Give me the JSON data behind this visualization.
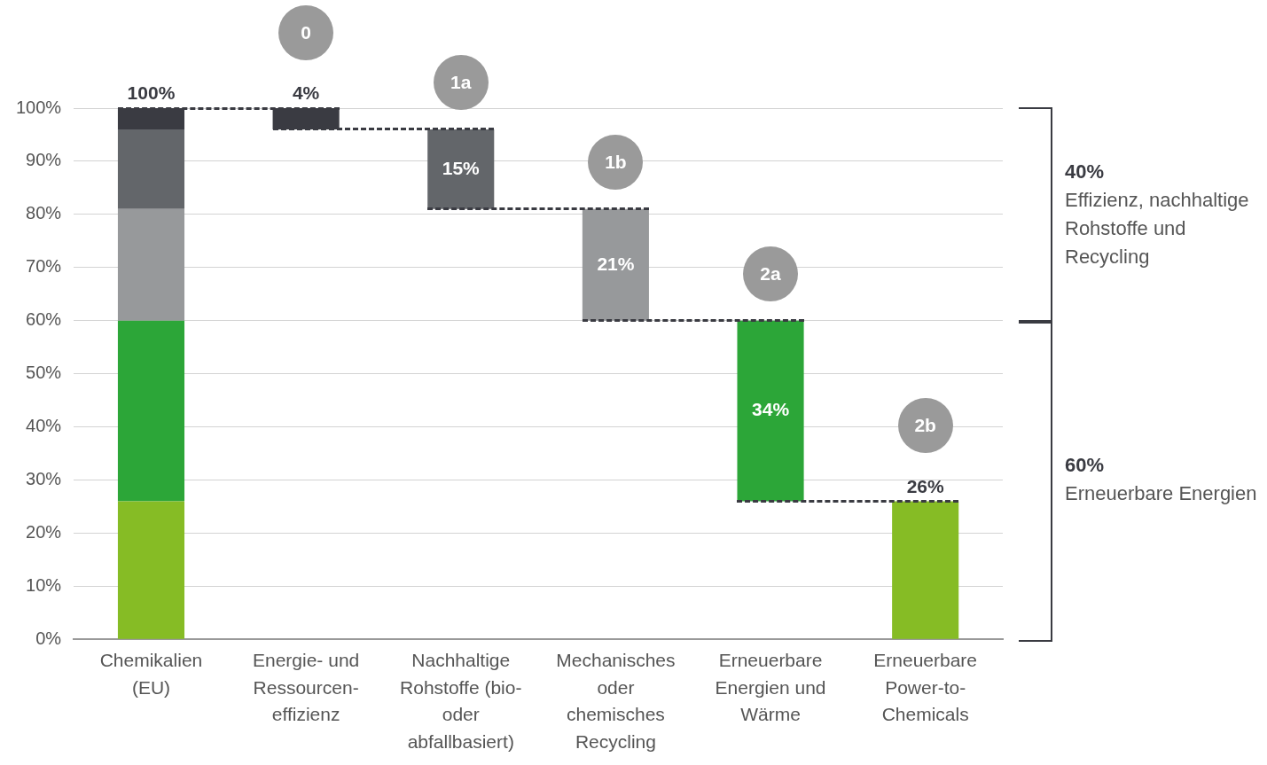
{
  "chart_data": {
    "type": "bar",
    "categories": [
      "Chemikalien (EU)",
      "Energie- und Ressourcen-effizienz",
      "Nachhaltige Rohstoffe (bio- oder abfallbasiert)",
      "Mechanisches oder chemisches Recycling",
      "Erneuerbare Energien und Wärme",
      "Erneuerbare Power-to-Chemicals"
    ],
    "series": [
      {
        "color": "#86bc25",
        "values": [
          26,
          null,
          null,
          null,
          null,
          26
        ],
        "base": [
          0,
          null,
          null,
          null,
          null,
          0
        ],
        "value_labels": [
          null,
          null,
          null,
          null,
          null,
          "26%"
        ]
      },
      {
        "color": "#2ca638",
        "values": [
          34,
          null,
          null,
          null,
          34,
          null
        ],
        "base": [
          26,
          null,
          null,
          null,
          26,
          null
        ],
        "value_labels": [
          null,
          null,
          null,
          null,
          "34%",
          null
        ]
      },
      {
        "color": "#97999b",
        "values": [
          21,
          null,
          null,
          21,
          null,
          null
        ],
        "base": [
          60,
          null,
          null,
          60,
          null,
          null
        ],
        "value_labels": [
          null,
          null,
          null,
          "21%",
          null,
          null
        ]
      },
      {
        "color": "#63666a",
        "values": [
          15,
          null,
          15,
          null,
          null,
          null
        ],
        "base": [
          81,
          null,
          81,
          null,
          null,
          null
        ],
        "value_labels": [
          null,
          null,
          "15%",
          null,
          null,
          null
        ]
      },
      {
        "color": "#3a3b42",
        "values": [
          4,
          4,
          null,
          null,
          null,
          null
        ],
        "base": [
          96,
          96,
          null,
          null,
          null,
          null
        ],
        "value_labels": [
          null,
          "4%",
          null,
          null,
          null,
          null
        ]
      }
    ],
    "totals": [
      "100%",
      null,
      null,
      null,
      null,
      null
    ],
    "ylim": [
      0,
      100
    ],
    "yticks": [
      {
        "value": 0,
        "label": "0%"
      },
      {
        "value": 10,
        "label": "10%"
      },
      {
        "value": 20,
        "label": "20%"
      },
      {
        "value": 30,
        "label": "30%"
      },
      {
        "value": 40,
        "label": "40%"
      },
      {
        "value": 50,
        "label": "50%"
      },
      {
        "value": 60,
        "label": "60%"
      },
      {
        "value": 70,
        "label": "70%"
      },
      {
        "value": 80,
        "label": "80%"
      },
      {
        "value": 90,
        "label": "90%"
      },
      {
        "value": 100,
        "label": "100%"
      }
    ],
    "grid": "y",
    "legend": false,
    "annotations": [
      "0",
      "1a",
      "1b",
      "2a",
      "2b",
      "40%",
      "Effizienz, nachhaltige Rohstoffe und Recycling",
      "60%",
      "Erneuerbare Energien"
    ]
  }
}
